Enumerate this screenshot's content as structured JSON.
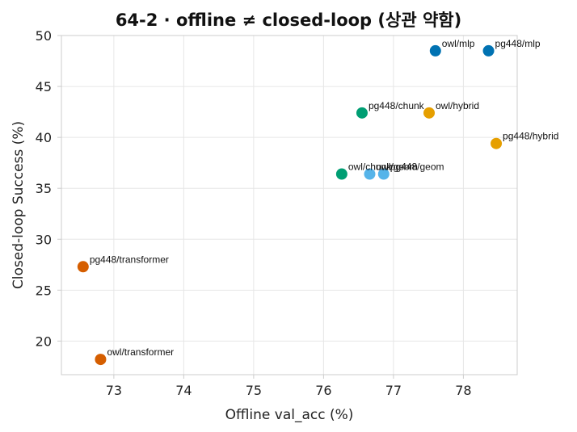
{
  "chart_data": {
    "type": "scatter",
    "title": "64-2 · offline ≠ closed-loop (상관 약함)",
    "xlabel": "Offline val_acc (%)",
    "ylabel": "Closed-loop Success (%)",
    "xlim": [
      72.25,
      78.77
    ],
    "ylim": [
      16.7,
      50.0
    ],
    "xticks": [
      73,
      74,
      75,
      76,
      77,
      78
    ],
    "yticks": [
      20,
      25,
      30,
      35,
      40,
      45,
      50
    ],
    "grid": true,
    "points": [
      {
        "label": "owl/mlp",
        "x": 77.6,
        "y": 48.5,
        "color": "#0072b2"
      },
      {
        "label": "pg448/mlp",
        "x": 78.36,
        "y": 48.5,
        "color": "#0072b2"
      },
      {
        "label": "pg448/chunk",
        "x": 76.55,
        "y": 42.4,
        "color": "#009e73"
      },
      {
        "label": "owl/hybrid",
        "x": 77.51,
        "y": 42.4,
        "color": "#e69f00"
      },
      {
        "label": "pg448/hybrid",
        "x": 78.47,
        "y": 39.4,
        "color": "#e69f00"
      },
      {
        "label": "owl/chunk",
        "x": 76.26,
        "y": 36.4,
        "color": "#009e73"
      },
      {
        "label": "owl/geom",
        "x": 76.66,
        "y": 36.4,
        "color": "#56b4e9"
      },
      {
        "label": "pg448/geom",
        "x": 76.86,
        "y": 36.4,
        "color": "#56b4e9"
      },
      {
        "label": "pg448/transformer",
        "x": 72.56,
        "y": 27.3,
        "color": "#d55e00"
      },
      {
        "label": "owl/transformer",
        "x": 72.81,
        "y": 18.2,
        "color": "#d55e00"
      }
    ]
  }
}
